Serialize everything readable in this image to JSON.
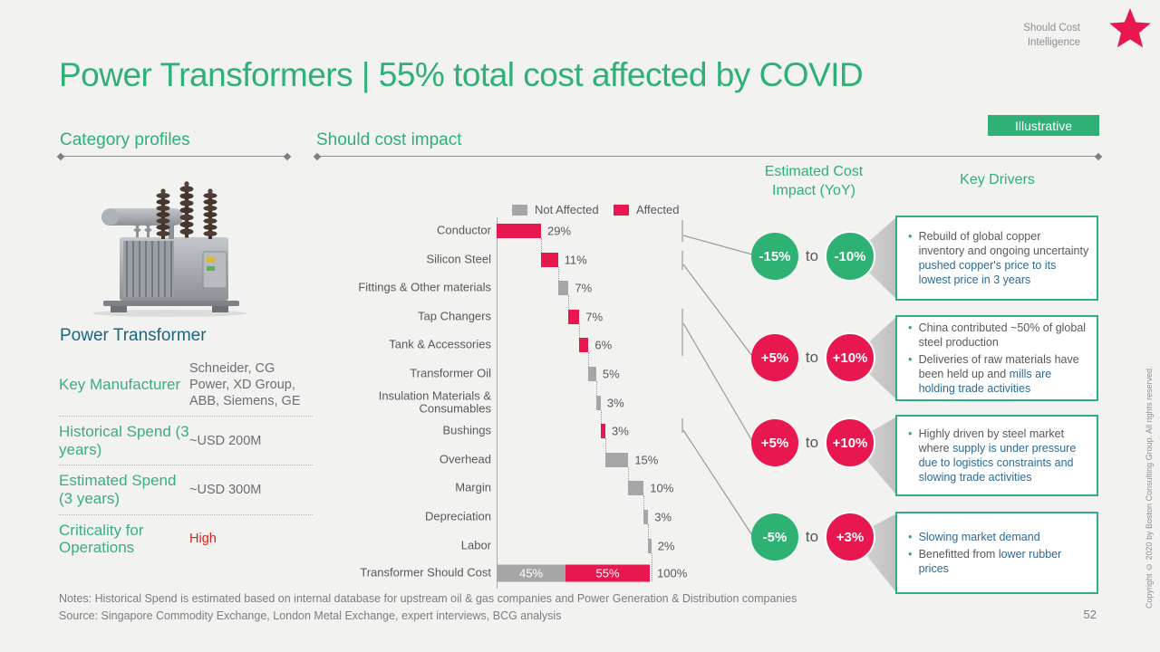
{
  "slide": {
    "eyebrow_line1": "Should Cost",
    "eyebrow_line2": "Intelligence",
    "title": "Power Transformers | 55% total cost affected by COVID",
    "badge": "Illustrative",
    "page_number": "52",
    "copyright": "Copyright © 2020 by Boston Consulting Group. All rights reserved.",
    "notes_line1": "Notes: Historical Spend is estimated based on internal database for upstream oil & gas companies and Power Generation & Distribution companies",
    "notes_line2": "Source: Singapore Commodity Exchange, London Metal Exchange, expert interviews, BCG analysis"
  },
  "left_panel": {
    "heading": "Category profiles",
    "product_name": "Power Transformer",
    "attributes": [
      {
        "label": "Key Manufacturer",
        "value": "Schneider, CG Power, XD Group, ABB, Siemens, GE",
        "value_color": "gray"
      },
      {
        "label": "Historical Spend (3 years)",
        "value": "~USD 200M",
        "value_color": "gray"
      },
      {
        "label": "Estimated Spend (3 years)",
        "value": "~USD 300M",
        "value_color": "gray"
      },
      {
        "label": "Criticality for Operations",
        "value": "High",
        "value_color": "red"
      }
    ]
  },
  "chart_section": {
    "heading": "Should cost impact",
    "impact_header_line1": "Estimated Cost",
    "impact_header_line2": "Impact (YoY)",
    "drivers_header": "Key Drivers"
  },
  "chart_data": {
    "type": "bar",
    "subtype": "horizontal-waterfall",
    "axis_range": [
      0,
      100
    ],
    "legend": [
      {
        "label": "Not Affected",
        "color": "#a6a6a6"
      },
      {
        "label": "Affected",
        "color": "#e8174f"
      }
    ],
    "rows": [
      {
        "label": "Conductor",
        "value": 29,
        "value_label": "29%",
        "affected": true
      },
      {
        "label": "Silicon Steel",
        "value": 11,
        "value_label": "11%",
        "affected": true
      },
      {
        "label": "Fittings & Other materials",
        "value": 7,
        "value_label": "7%",
        "affected": false
      },
      {
        "label": "Tap Changers",
        "value": 7,
        "value_label": "7%",
        "affected": true
      },
      {
        "label": "Tank & Accessories",
        "value": 6,
        "value_label": "6%",
        "affected": true
      },
      {
        "label": "Transformer Oil",
        "value": 5,
        "value_label": "5%",
        "affected": false
      },
      {
        "label": "Insulation Materials & Consumables",
        "value": 3,
        "value_label": "3%",
        "affected": false
      },
      {
        "label": "Bushings",
        "value": 3,
        "value_label": "3%",
        "affected": true
      },
      {
        "label": "Overhead",
        "value": 15,
        "value_label": "15%",
        "affected": false
      },
      {
        "label": "Margin",
        "value": 10,
        "value_label": "10%",
        "affected": false
      },
      {
        "label": "Depreciation",
        "value": 3,
        "value_label": "3%",
        "affected": false
      },
      {
        "label": "Labor",
        "value": 2,
        "value_label": "2%",
        "affected": false
      }
    ],
    "total_row": {
      "label": "Transformer Should Cost",
      "not_affected": 45,
      "affected": 55,
      "not_affected_label": "45%",
      "affected_label": "55%",
      "total_label": "100%"
    }
  },
  "impact_rows": [
    {
      "low": "-15%",
      "word": "to",
      "high": "-10%",
      "low_color": "green",
      "high_color": "green"
    },
    {
      "low": "+5%",
      "word": "to",
      "high": "+10%",
      "low_color": "pink",
      "high_color": "pink"
    },
    {
      "low": "+5%",
      "word": "to",
      "high": "+10%",
      "low_color": "pink",
      "high_color": "pink"
    },
    {
      "low": "-5%",
      "word": "to",
      "high": "+3%",
      "low_color": "green",
      "high_color": "pink"
    }
  ],
  "driver_boxes": [
    {
      "bullets": [
        [
          {
            "t": "Rebuild of global copper inventory and ongoing uncertainty ",
            "c": "gray"
          },
          {
            "t": "pushed copper's price to its lowest price in 3 years",
            "c": "blue"
          }
        ]
      ]
    },
    {
      "bullets": [
        [
          {
            "t": "China contributed ~50% of global steel production",
            "c": "gray"
          }
        ],
        [
          {
            "t": "Deliveries of raw materials have been held up and ",
            "c": "gray"
          },
          {
            "t": "mills are holding trade activities",
            "c": "blue"
          }
        ]
      ]
    },
    {
      "bullets": [
        [
          {
            "t": "Highly driven by steel market where ",
            "c": "gray"
          },
          {
            "t": "supply is under pressure due to logistics constraints and slowing trade activities",
            "c": "blue"
          }
        ]
      ]
    },
    {
      "bullets": [
        [
          {
            "t": "Slowing market demand",
            "c": "blue"
          }
        ],
        [
          {
            "t": "Benefitted from ",
            "c": "gray"
          },
          {
            "t": "lower rubber prices",
            "c": "blue"
          }
        ]
      ]
    }
  ],
  "colors": {
    "green": "#2eb077",
    "circle_green": "#2eb273",
    "pink": "#e8174f",
    "gray_bar": "#a6a6a6",
    "blue_text": "#2d6a93"
  }
}
